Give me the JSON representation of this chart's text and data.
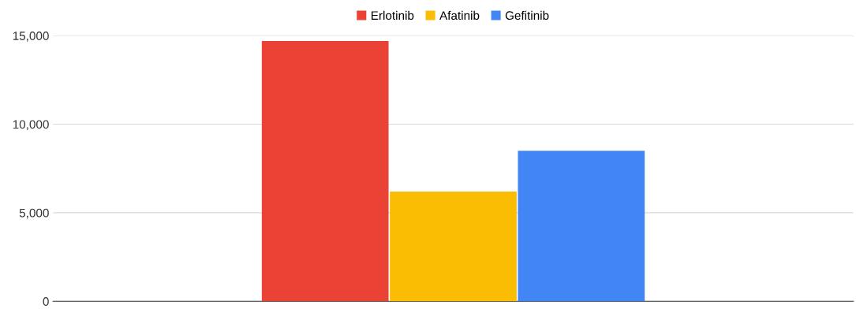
{
  "chart_data": {
    "type": "bar",
    "categories": [
      null
    ],
    "series": [
      {
        "name": "Erlotinib",
        "color": "#ea4335",
        "values": [
          14700
        ]
      },
      {
        "name": "Afatinib",
        "color": "#fbbc04",
        "values": [
          6200
        ]
      },
      {
        "name": "Gefitinib",
        "color": "#4285f4",
        "values": [
          8500
        ]
      }
    ],
    "ylim": [
      0,
      15000
    ],
    "yticks": [
      {
        "value": 0,
        "label": "0"
      },
      {
        "value": 5000,
        "label": "5,000"
      },
      {
        "value": 10000,
        "label": "10,000"
      },
      {
        "value": 15000,
        "label": "15,000"
      }
    ],
    "grid": "y",
    "legend": "top"
  }
}
